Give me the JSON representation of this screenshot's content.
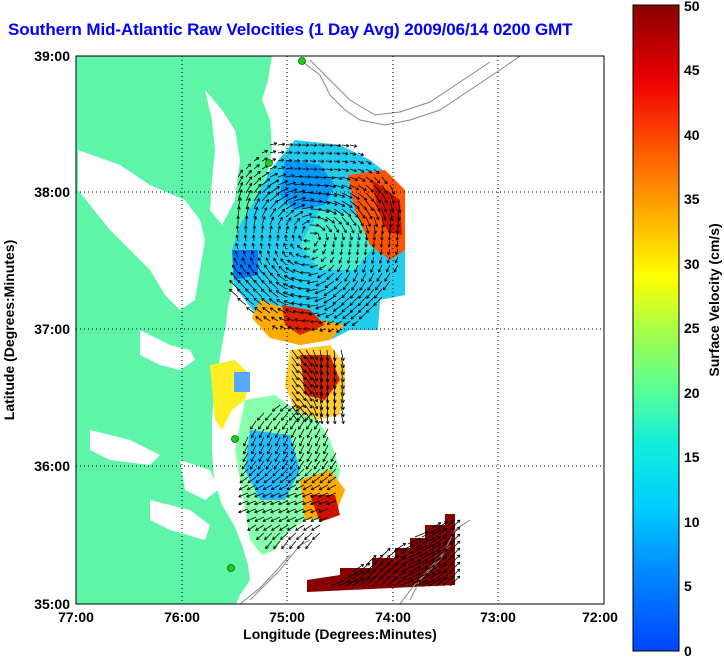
{
  "title": "Southern Mid-Atlantic Raw Velocities (1 Day Avg) 2009/06/14 0200 GMT",
  "x_axis": {
    "label": "Longitude (Degrees:Minutes)",
    "ticks": [
      "77:00",
      "76:00",
      "75:00",
      "74:00",
      "73:00",
      "72:00"
    ],
    "range": [
      -77,
      -72
    ]
  },
  "y_axis": {
    "label": "Latitude (Degrees:Minutes)",
    "ticks": [
      "39:00",
      "38:00",
      "37:00",
      "36:00",
      "35:00"
    ],
    "range": [
      35,
      39
    ]
  },
  "colorbar": {
    "label": "Surface Velocity (cm/s)",
    "ticks": [
      "0",
      "5",
      "10",
      "15",
      "20",
      "25",
      "30",
      "35",
      "40",
      "45",
      "50"
    ],
    "range": [
      0,
      50
    ],
    "colormap": "jet"
  },
  "colors": {
    "land": "#5ff5a8",
    "ocean": "#ffffff",
    "bathymetry": "#888888",
    "grid": "#000000",
    "title": "#0000ff",
    "station": "#22cc22"
  },
  "grid": "dotted"
}
